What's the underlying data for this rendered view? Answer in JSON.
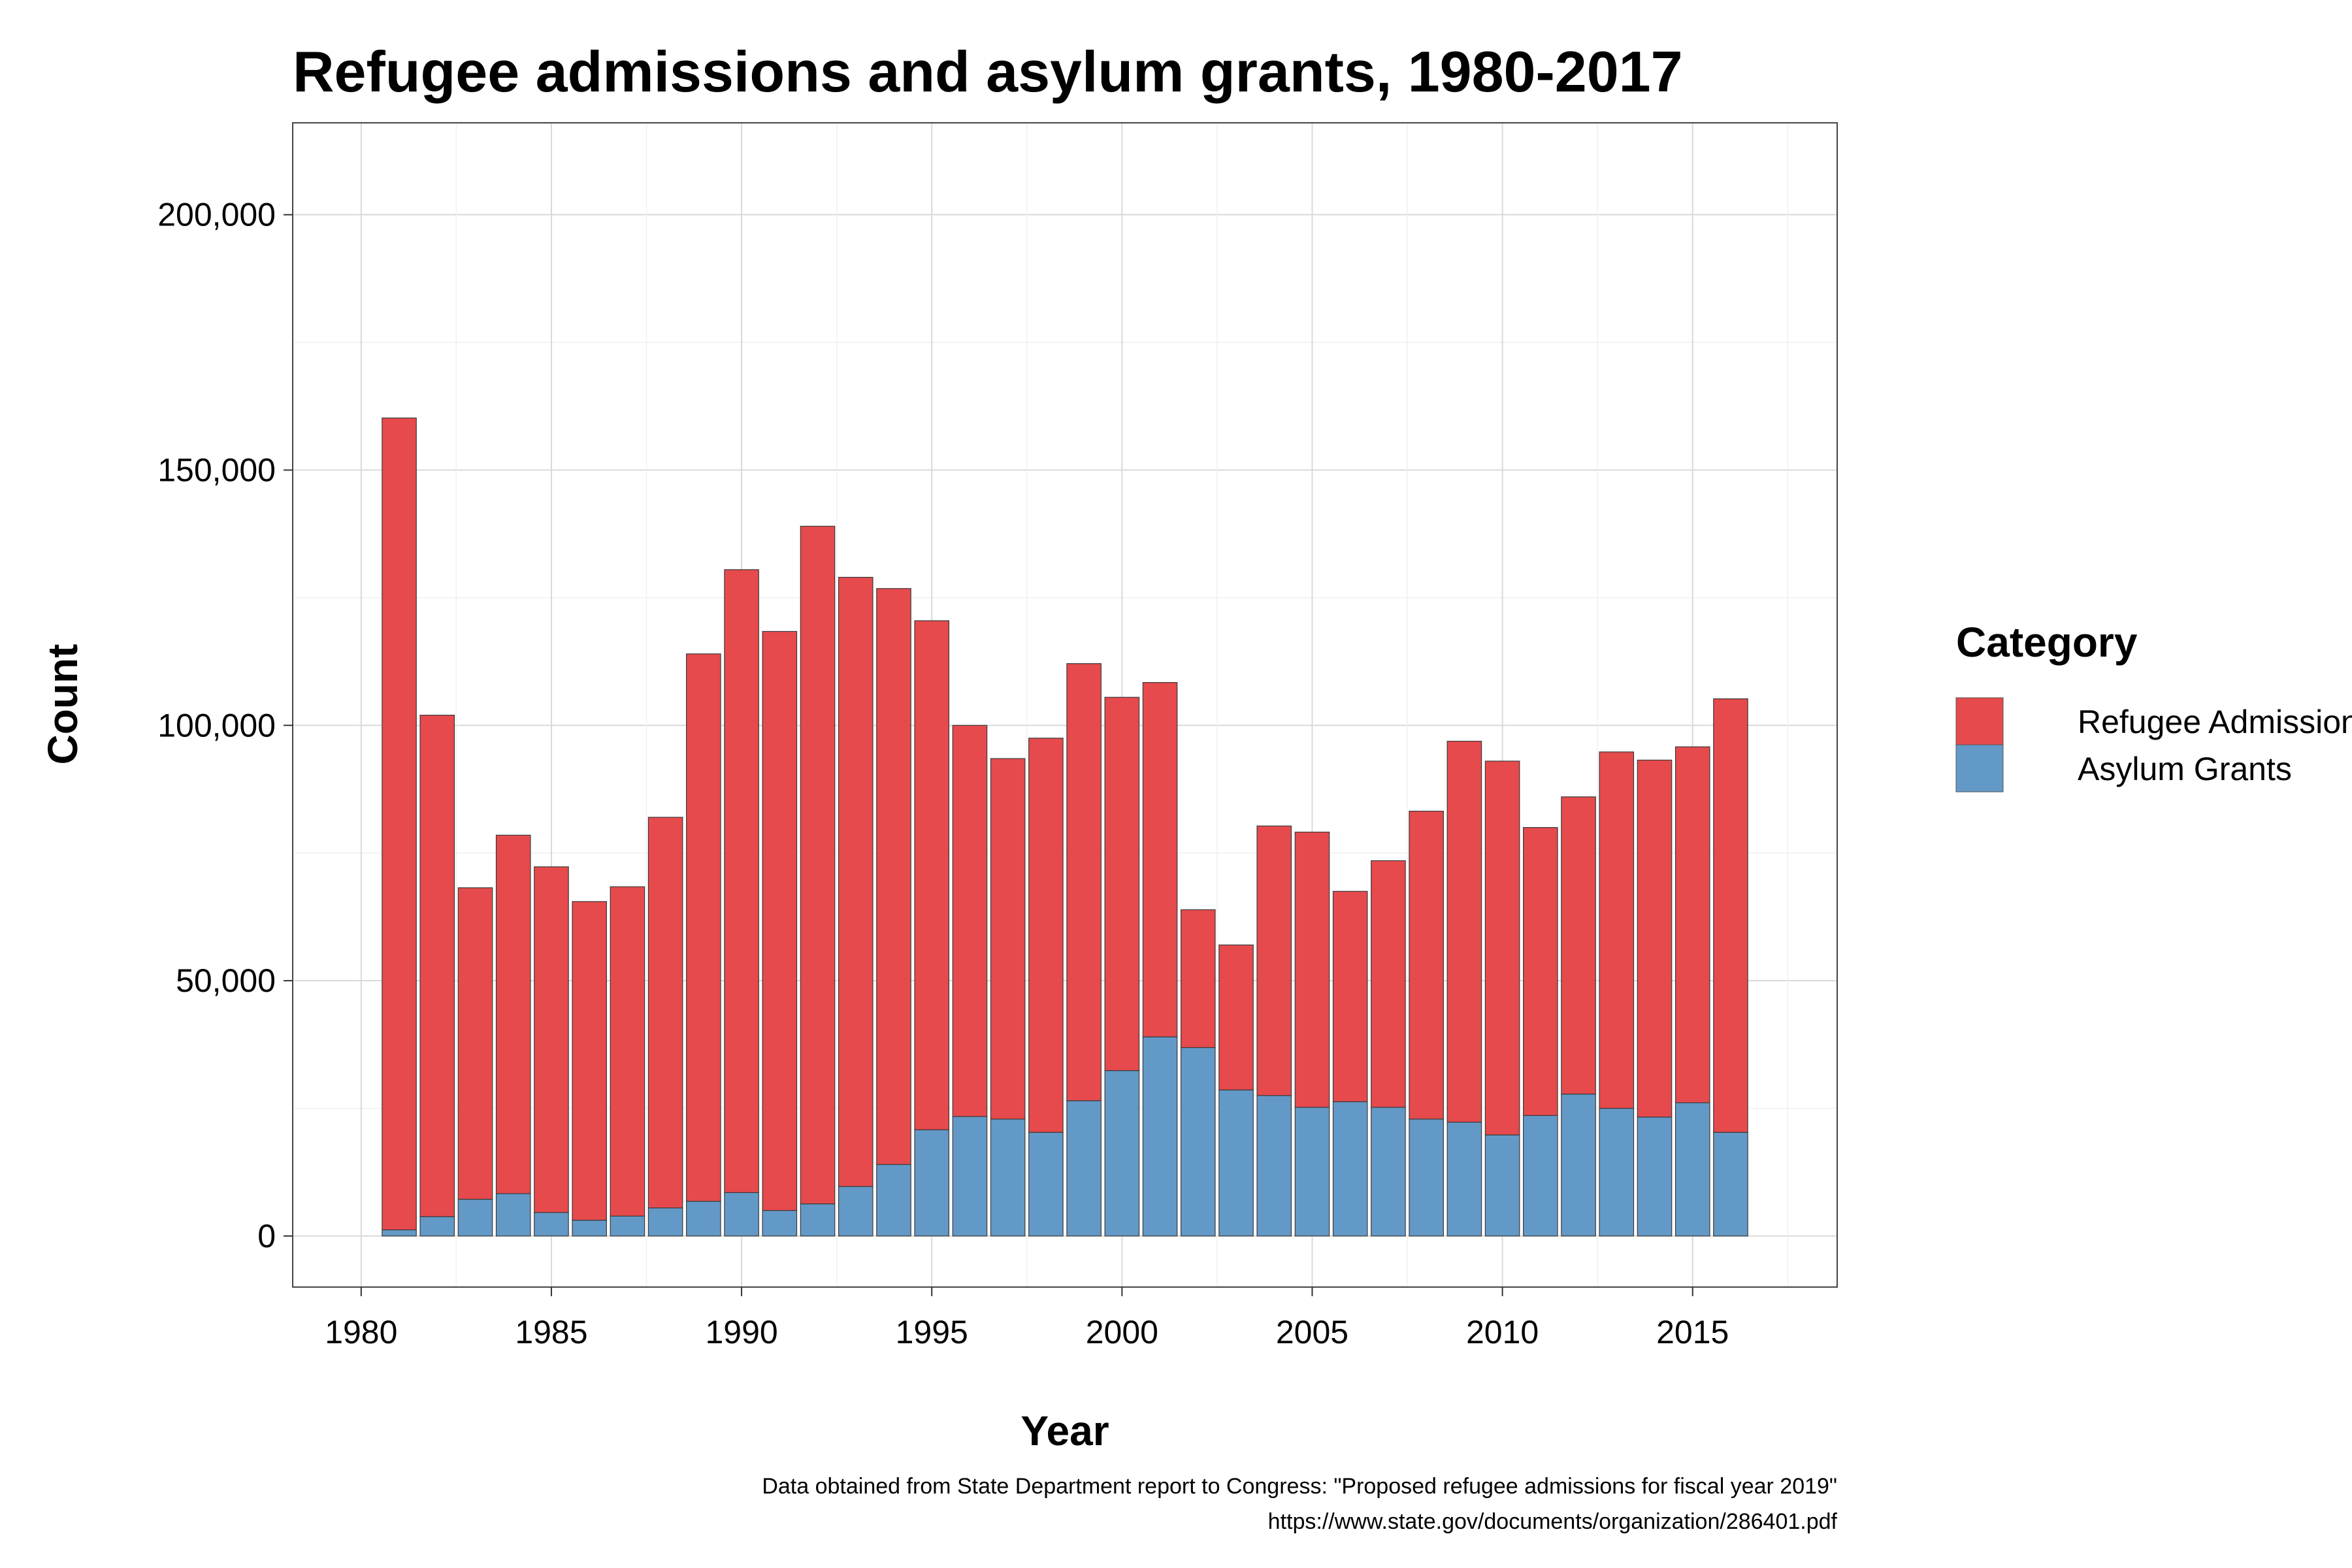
{
  "chart_data": {
    "type": "bar",
    "stacked": true,
    "title": "Refugee admissions and asylum grants, 1980-2017",
    "xlabel": "Year",
    "ylabel": "Count",
    "xlim": [
      1978.2,
      2018.8
    ],
    "ylim": [
      -10000,
      218000
    ],
    "x_ticks": [
      1980,
      1985,
      1990,
      1995,
      2000,
      2005,
      2010,
      2015
    ],
    "x_tick_labels": [
      "1980",
      "1985",
      "1990",
      "1995",
      "2000",
      "2005",
      "2010",
      "2015"
    ],
    "y_ticks": [
      0,
      50000,
      100000,
      150000,
      200000
    ],
    "y_tick_labels": [
      "0",
      "50,000",
      "100,000",
      "150,000",
      "200,000"
    ],
    "grid": true,
    "legend_title": "Category",
    "legend_position": "right",
    "x": [
      1981,
      1982,
      1983,
      1984,
      1985,
      1986,
      1987,
      1988,
      1989,
      1990,
      1991,
      1992,
      1993,
      1994,
      1995,
      1996,
      1997,
      1998,
      1999,
      2000,
      2001,
      2002,
      2003,
      2004,
      2005,
      2006,
      2007,
      2008,
      2009,
      2010,
      2011,
      2012,
      2013,
      2014,
      2015,
      2016
    ],
    "series": [
      {
        "name": "Asylum Grants",
        "color": "#6399c7",
        "values": [
          1200,
          3800,
          7200,
          8300,
          4600,
          3100,
          3900,
          5500,
          6800,
          8500,
          5000,
          6300,
          9700,
          14000,
          20800,
          23400,
          22900,
          20300,
          26500,
          32400,
          39000,
          36900,
          28600,
          27500,
          25200,
          26300,
          25200,
          22900,
          22300,
          19800,
          23600,
          27800,
          25000,
          23300,
          26100,
          20300
        ]
      },
      {
        "name": "Refugee Admissions",
        "color": "#e64a4c",
        "values": [
          159000,
          98200,
          61000,
          70200,
          67700,
          62400,
          64500,
          76500,
          107200,
          122000,
          113400,
          132700,
          119300,
          112800,
          99700,
          76600,
          70600,
          77200,
          85600,
          73100,
          69400,
          27000,
          28400,
          52800,
          53900,
          41200,
          48300,
          60300,
          74600,
          73200,
          56400,
          58200,
          69800,
          69900,
          69700,
          84900
        ]
      }
    ],
    "caption": [
      "Data obtained from State Department report to Congress: \"Proposed refugee admissions for fiscal year 2019\"",
      "https://www.state.gov/documents/organization/286401.pdf"
    ]
  }
}
